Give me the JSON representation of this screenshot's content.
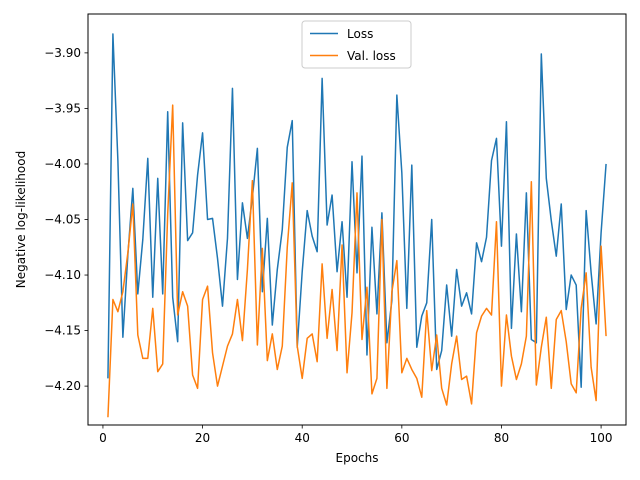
{
  "chart_data": {
    "type": "line",
    "xlabel": "Epochs",
    "ylabel": "Negative log-likelihood",
    "xlim": [
      -3,
      105
    ],
    "ylim": [
      -4.235,
      -3.865
    ],
    "xticks": [
      0,
      20,
      40,
      60,
      80,
      100
    ],
    "yticks": [
      -4.2,
      -4.15,
      -4.1,
      -4.05,
      -4.0,
      -3.95,
      -3.9
    ],
    "ytick_labels": [
      "−4.20",
      "−4.15",
      "−4.10",
      "−4.05",
      "−4.00",
      "−3.95",
      "−3.90"
    ],
    "xtick_labels": [
      "0",
      "20",
      "40",
      "60",
      "80",
      "100"
    ],
    "grid": false,
    "legend_position": "top-center",
    "x": [
      1,
      2,
      3,
      4,
      5,
      6,
      7,
      8,
      9,
      10,
      11,
      12,
      13,
      14,
      15,
      16,
      17,
      18,
      19,
      20,
      21,
      22,
      23,
      24,
      25,
      26,
      27,
      28,
      29,
      30,
      31,
      32,
      33,
      34,
      35,
      36,
      37,
      38,
      39,
      40,
      41,
      42,
      43,
      44,
      45,
      46,
      47,
      48,
      49,
      50,
      51,
      52,
      53,
      54,
      55,
      56,
      57,
      58,
      59,
      60,
      61,
      62,
      63,
      64,
      65,
      66,
      67,
      68,
      69,
      70,
      71,
      72,
      73,
      74,
      75,
      76,
      77,
      78,
      79,
      80,
      81,
      82,
      83,
      84,
      85,
      86,
      87,
      88,
      89,
      90,
      91,
      92,
      93,
      94,
      95,
      96,
      97,
      98,
      99,
      100,
      101
    ],
    "series": [
      {
        "name": "Loss",
        "color": "#1f77b4",
        "values": [
          -4.193,
          -3.883,
          -3.997,
          -4.156,
          -4.082,
          -4.022,
          -4.117,
          -4.068,
          -3.995,
          -4.12,
          -4.013,
          -4.117,
          -3.953,
          -4.12,
          -4.16,
          -3.963,
          -4.069,
          -4.062,
          -4.01,
          -3.972,
          -4.05,
          -4.049,
          -4.085,
          -4.128,
          -4.067,
          -3.932,
          -4.104,
          -4.035,
          -4.067,
          -4.03,
          -3.986,
          -4.115,
          -4.049,
          -4.145,
          -4.095,
          -4.059,
          -3.985,
          -3.961,
          -4.165,
          -4.097,
          -4.042,
          -4.065,
          -4.079,
          -3.923,
          -4.055,
          -4.028,
          -4.097,
          -4.052,
          -4.12,
          -3.998,
          -4.098,
          -3.993,
          -4.172,
          -4.057,
          -4.135,
          -4.044,
          -4.161,
          -4.123,
          -3.938,
          -4.008,
          -4.13,
          -4.001,
          -4.165,
          -4.137,
          -4.125,
          -4.05,
          -4.185,
          -4.168,
          -4.109,
          -4.155,
          -4.095,
          -4.128,
          -4.116,
          -4.135,
          -4.071,
          -4.088,
          -4.066,
          -3.997,
          -3.977,
          -4.074,
          -3.962,
          -4.148,
          -4.063,
          -4.133,
          -4.026,
          -4.158,
          -4.161,
          -3.901,
          -4.013,
          -4.051,
          -4.083,
          -4.036,
          -4.131,
          -4.1,
          -4.109,
          -4.201,
          -4.042,
          -4.098,
          -4.144,
          -4.062,
          -4.0
        ]
      },
      {
        "name": "Val. loss",
        "color": "#ff7f0e",
        "values": [
          -4.228,
          -4.122,
          -4.133,
          -4.115,
          -4.08,
          -4.036,
          -4.154,
          -4.175,
          -4.175,
          -4.13,
          -4.187,
          -4.18,
          -4.045,
          -3.947,
          -4.136,
          -4.115,
          -4.128,
          -4.19,
          -4.202,
          -4.122,
          -4.11,
          -4.17,
          -4.2,
          -4.182,
          -4.164,
          -4.153,
          -4.122,
          -4.159,
          -4.095,
          -4.015,
          -4.163,
          -4.076,
          -4.177,
          -4.153,
          -4.185,
          -4.164,
          -4.075,
          -4.017,
          -4.164,
          -4.193,
          -4.157,
          -4.153,
          -4.178,
          -4.09,
          -4.157,
          -4.113,
          -4.168,
          -4.073,
          -4.188,
          -4.134,
          -4.026,
          -4.158,
          -4.111,
          -4.207,
          -4.193,
          -4.05,
          -4.202,
          -4.115,
          -4.087,
          -4.188,
          -4.175,
          -4.185,
          -4.193,
          -4.21,
          -4.132,
          -4.186,
          -4.154,
          -4.202,
          -4.217,
          -4.18,
          -4.155,
          -4.194,
          -4.191,
          -4.216,
          -4.152,
          -4.137,
          -4.13,
          -4.136,
          -4.052,
          -4.2,
          -4.136,
          -4.173,
          -4.194,
          -4.18,
          -4.155,
          -4.016,
          -4.199,
          -4.165,
          -4.138,
          -4.202,
          -4.14,
          -4.132,
          -4.16,
          -4.198,
          -4.206,
          -4.13,
          -4.098,
          -4.183,
          -4.213,
          -4.074,
          -4.155
        ]
      }
    ]
  }
}
